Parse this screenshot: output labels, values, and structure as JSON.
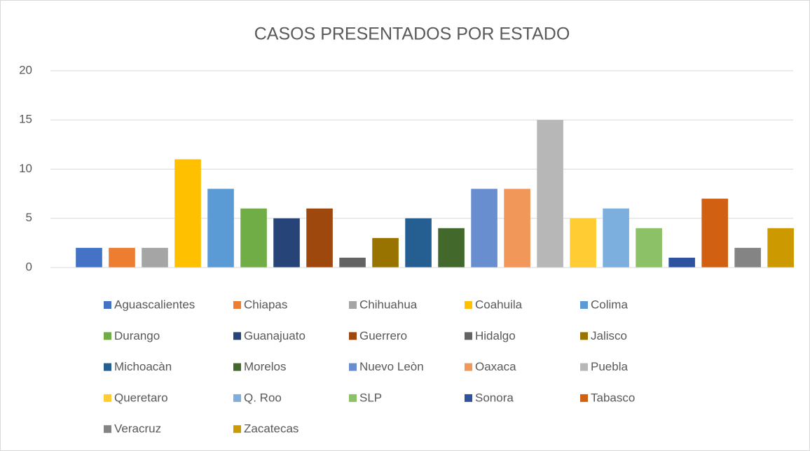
{
  "chart_data": {
    "type": "bar",
    "title": "CASOS PRESENTADOS POR ESTADO",
    "ylim": [
      0,
      20
    ],
    "yticks": [
      0,
      5,
      10,
      15,
      20
    ],
    "grid": true,
    "legend": "bottom",
    "series": [
      {
        "name": "Aguascalientes",
        "color": "#4472c4",
        "values": [
          2
        ]
      },
      {
        "name": "Chiapas",
        "color": "#ed7d31",
        "values": [
          2
        ]
      },
      {
        "name": "Chihuahua",
        "color": "#a5a5a5",
        "values": [
          2
        ]
      },
      {
        "name": "Coahuila",
        "color": "#ffc000",
        "values": [
          11
        ]
      },
      {
        "name": "Colima",
        "color": "#5b9bd5",
        "values": [
          8
        ]
      },
      {
        "name": "Durango",
        "color": "#70ad47",
        "values": [
          6
        ]
      },
      {
        "name": "Guanajuato",
        "color": "#264478",
        "values": [
          5
        ]
      },
      {
        "name": "Guerrero",
        "color": "#9e480e",
        "values": [
          6
        ]
      },
      {
        "name": "Hidalgo",
        "color": "#636363",
        "values": [
          1
        ]
      },
      {
        "name": "Jalisco",
        "color": "#997300",
        "values": [
          3
        ]
      },
      {
        "name": "Michoacàn",
        "color": "#255e91",
        "values": [
          5
        ]
      },
      {
        "name": "Morelos",
        "color": "#43682b",
        "values": [
          4
        ]
      },
      {
        "name": "Nuevo Leòn",
        "color": "#698ed0",
        "values": [
          8
        ]
      },
      {
        "name": "Oaxaca",
        "color": "#f1975a",
        "values": [
          8
        ]
      },
      {
        "name": "Puebla",
        "color": "#b7b7b7",
        "values": [
          15
        ]
      },
      {
        "name": "Queretaro",
        "color": "#ffcd33",
        "values": [
          5
        ]
      },
      {
        "name": "Q. Roo",
        "color": "#7cafdd",
        "values": [
          6
        ]
      },
      {
        "name": "SLP",
        "color": "#8cc168",
        "values": [
          4
        ]
      },
      {
        "name": "Sonora",
        "color": "#2f52a0",
        "values": [
          1
        ]
      },
      {
        "name": "Tabasco",
        "color": "#d26012",
        "values": [
          7
        ]
      },
      {
        "name": "Veracruz",
        "color": "#848484",
        "values": [
          2
        ]
      },
      {
        "name": "Zacatecas",
        "color": "#cc9a00",
        "values": [
          4
        ]
      }
    ]
  }
}
